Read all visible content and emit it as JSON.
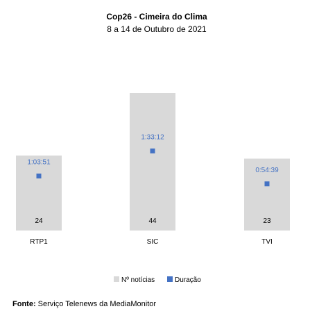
{
  "chart_data": {
    "type": "bar",
    "title": "Cop26 - Cimeira do Clima",
    "subtitle": "8 a 14 de Outubro de 2021",
    "categories": [
      "RTP1",
      "SIC",
      "TVI"
    ],
    "series": [
      {
        "name": "Nº notícias",
        "kind": "bar",
        "values": [
          24,
          44,
          23
        ],
        "labels": [
          "24",
          "44",
          "23"
        ],
        "color": "#d9d9d9"
      },
      {
        "name": "Duração",
        "kind": "marker",
        "values": [
          "1:03:51",
          "1:33:12",
          "0:54:39"
        ],
        "labels": [
          "1:03:51",
          "1:33:12",
          "0:54:39"
        ],
        "color": "#4472c4",
        "label_color": "#4472c4"
      }
    ],
    "legend_position": "bottom",
    "grid": false
  },
  "source": {
    "label": "Fonte:",
    "text": "Serviço Telenews da MediaMonitor"
  }
}
